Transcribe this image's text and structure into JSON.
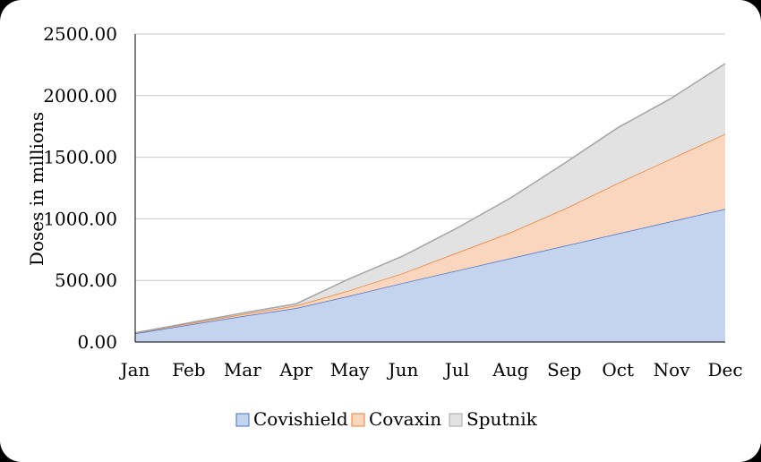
{
  "chart_data": {
    "type": "area",
    "stacked": true,
    "title": "",
    "xlabel": "",
    "ylabel": "Doses in millions",
    "categories": [
      "Jan",
      "Feb",
      "Mar",
      "Apr",
      "May",
      "Jun",
      "Jul",
      "Aug",
      "Sep",
      "Oct",
      "Nov",
      "Dec"
    ],
    "ylim": [
      0,
      2500
    ],
    "yticks": [
      "0.00",
      "500.00",
      "1000.00",
      "1500.00",
      "2000.00",
      "2500.00"
    ],
    "grid": true,
    "legend_position": "bottom",
    "series": [
      {
        "name": "Covishield",
        "values": [
          70,
          140,
          210,
          275,
          375,
          480,
          580,
          680,
          780,
          880,
          980,
          1080
        ],
        "fill": "#c5d4ee",
        "stroke": "#4472c4"
      },
      {
        "name": "Covaxin",
        "values": [
          5,
          10,
          15,
          20,
          45,
          80,
          145,
          210,
          300,
          410,
          510,
          610
        ],
        "fill": "#fad6bf",
        "stroke": "#ed7d31"
      },
      {
        "name": "Sputnik",
        "values": [
          0,
          5,
          10,
          15,
          95,
          140,
          200,
          280,
          370,
          450,
          490,
          570
        ],
        "fill": "#e2e2e2",
        "stroke": "#a5a5a5"
      }
    ]
  }
}
